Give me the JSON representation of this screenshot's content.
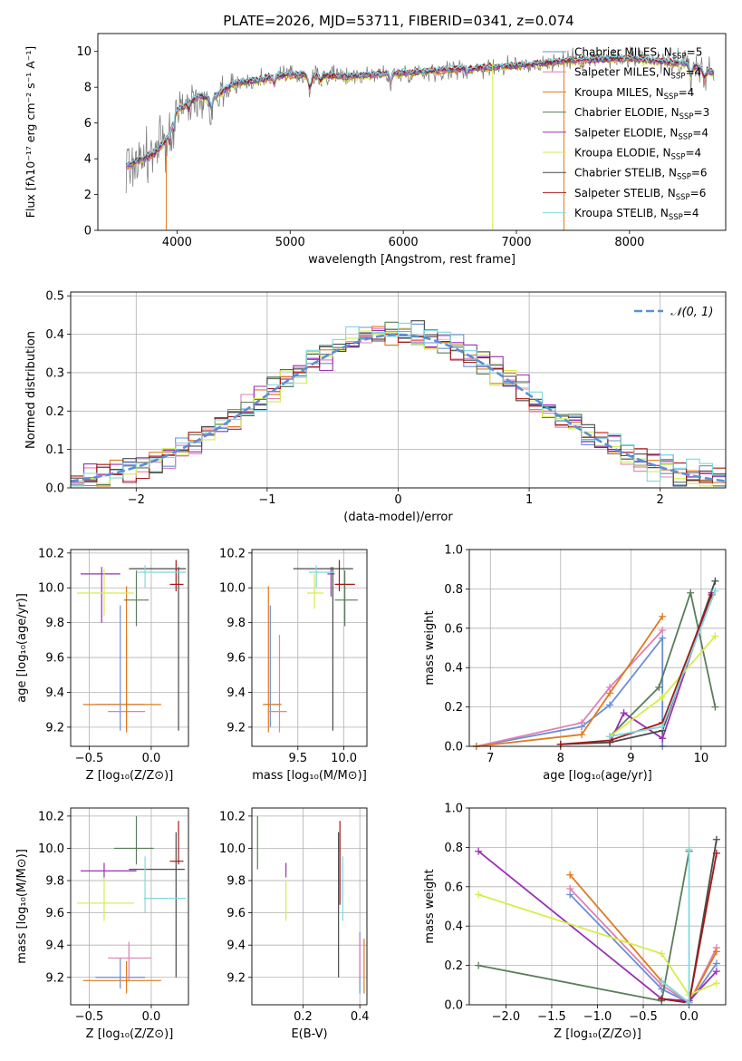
{
  "colors": {
    "chabrier_miles": "#6a8fd6",
    "salpeter_miles": "#e07fb3",
    "kroupa_miles": "#e07a1f",
    "chabrier_elodie": "#5a7d5a",
    "salpeter_elodie": "#9b2fb5",
    "kroupa_elodie": "#d4ee4a",
    "chabrier_stelib": "#4a4a4a",
    "salpeter_stelib": "#a51818",
    "kroupa_stelib": "#80d8de",
    "data": "#808080",
    "normal": "#5b8fd9",
    "grid": "#b0b0b0"
  },
  "chart_data": [
    {
      "id": "spectrum",
      "type": "line",
      "title": "PLATE=2026, MJD=53711, FIBERID=0341, z=0.074",
      "xlabel": "wavelength [Angstrom, rest frame]",
      "ylabel": "Flux [fλ10⁻¹⁷ erg cm⁻² s⁻¹ A⁻¹]",
      "xlim": [
        3300,
        8850
      ],
      "ylim": [
        0,
        11
      ],
      "xticks": [
        "4000",
        "5000",
        "6000",
        "7000",
        "8000"
      ],
      "yticks": [
        "0",
        "2",
        "4",
        "6",
        "8",
        "10"
      ],
      "legend_position": "right",
      "legend": [
        {
          "label": "Chabrier MILES, N",
          "sub": "SSP",
          "tail": "=5",
          "color_key": "chabrier_miles"
        },
        {
          "label": "Salpeter MILES, N",
          "sub": "SSP",
          "tail": "=4",
          "color_key": "salpeter_miles"
        },
        {
          "label": "Kroupa MILES, N",
          "sub": "SSP",
          "tail": "=4",
          "color_key": "kroupa_miles"
        },
        {
          "label": "Chabrier ELODIE, N",
          "sub": "SSP",
          "tail": "=3",
          "color_key": "chabrier_elodie"
        },
        {
          "label": "Salpeter ELODIE, N",
          "sub": "SSP",
          "tail": "=4",
          "color_key": "salpeter_elodie"
        },
        {
          "label": "Kroupa ELODIE, N",
          "sub": "SSP",
          "tail": "=4",
          "color_key": "kroupa_elodie"
        },
        {
          "label": "Chabrier STELIB, N",
          "sub": "SSP",
          "tail": "=6",
          "color_key": "chabrier_stelib"
        },
        {
          "label": "Salpeter STELIB, N",
          "sub": "SSP",
          "tail": "=6",
          "color_key": "salpeter_stelib"
        },
        {
          "label": "Kroupa STELIB, N",
          "sub": "SSP",
          "tail": "=4",
          "color_key": "kroupa_stelib"
        }
      ],
      "continuum": {
        "wavelength": [
          3550,
          3700,
          3800,
          3900,
          4000,
          4100,
          4200,
          4300,
          4500,
          4700,
          5000,
          5500,
          6000,
          6500,
          7000,
          7500,
          8000,
          8500,
          8750
        ],
        "flux": [
          3.6,
          4.0,
          4.3,
          5.0,
          6.7,
          7.1,
          7.5,
          7.3,
          8.2,
          8.4,
          8.7,
          8.6,
          8.8,
          9.0,
          9.2,
          9.5,
          9.6,
          9.3,
          8.8
        ]
      }
    },
    {
      "id": "residuals",
      "type": "histogram",
      "xlabel": "(data-model)/error",
      "ylabel": "Normed distribution",
      "xlim": [
        -2.5,
        2.5
      ],
      "ylim": [
        0,
        0.51
      ],
      "xticks": [
        "−2",
        "−1",
        "0",
        "1",
        "2"
      ],
      "yticks": [
        "0.0",
        "0.1",
        "0.2",
        "0.3",
        "0.4",
        "0.5"
      ],
      "legend_label": "𝒩(0, 1)",
      "legend_position": "top-right"
    },
    {
      "id": "age_vs_Z",
      "type": "errorbar",
      "xlabel": "Z [log₁₀(Z/Z⊙)]",
      "ylabel": "age  [log₁₀(age/yr)]",
      "xlim": [
        -0.65,
        0.3
      ],
      "ylim": [
        9.09,
        10.22
      ],
      "xticks": [
        "−0.5",
        "0.0"
      ],
      "yticks": [
        "9.2",
        "9.4",
        "9.6",
        "9.8",
        "10.0",
        "10.2"
      ],
      "points": [
        {
          "c": "chabrier_miles",
          "x": -0.25,
          "xlo": -0.45,
          "xhi": -0.05,
          "y": 9.33,
          "ylo": 9.18,
          "yhi": 9.9
        },
        {
          "c": "salpeter_miles",
          "x": -0.2,
          "xlo": -0.35,
          "xhi": -0.05,
          "y": 9.29,
          "ylo": 9.17,
          "yhi": 9.73
        },
        {
          "c": "kroupa_miles",
          "x": -0.2,
          "xlo": -0.55,
          "xhi": 0.08,
          "y": 9.33,
          "ylo": 9.17,
          "yhi": 10.01
        },
        {
          "c": "chabrier_elodie",
          "x": -0.12,
          "xlo": -0.22,
          "xhi": -0.02,
          "y": 9.93,
          "ylo": 9.78,
          "yhi": 10.1
        },
        {
          "c": "salpeter_elodie",
          "x": -0.4,
          "xlo": -0.57,
          "xhi": -0.25,
          "y": 10.08,
          "ylo": 9.8,
          "yhi": 10.12
        },
        {
          "c": "kroupa_elodie",
          "x": -0.38,
          "xlo": -0.6,
          "xhi": -0.14,
          "y": 9.97,
          "ylo": 9.84,
          "yhi": 10.11
        },
        {
          "c": "chabrier_stelib",
          "x": 0.22,
          "xlo": -0.18,
          "xhi": 0.28,
          "y": 10.11,
          "ylo": 9.18,
          "yhi": 10.12
        },
        {
          "c": "salpeter_stelib",
          "x": 0.2,
          "xlo": 0.15,
          "xhi": 0.26,
          "y": 10.02,
          "ylo": 9.98,
          "yhi": 10.16
        },
        {
          "c": "kroupa_stelib",
          "x": -0.05,
          "xlo": -0.12,
          "xhi": 0.28,
          "y": 10.09,
          "ylo": 10.0,
          "yhi": 10.13
        }
      ]
    },
    {
      "id": "age_vs_mass",
      "type": "errorbar",
      "xlabel": "mass [log₁₀(M/M⊙)]",
      "ylabel": "",
      "xlim": [
        9.0,
        10.25
      ],
      "ylim": [
        9.09,
        10.22
      ],
      "xticks": [
        "9.5",
        "10.0"
      ],
      "yticks": [
        "9.2",
        "9.4",
        "9.6",
        "9.8",
        "10.0",
        "10.2"
      ],
      "points": [
        {
          "c": "chabrier_miles",
          "x": 9.2,
          "xlo": 9.13,
          "xhi": 9.32,
          "y": 9.33,
          "ylo": 9.2,
          "yhi": 9.9
        },
        {
          "c": "salpeter_miles",
          "x": 9.3,
          "xlo": 9.18,
          "xhi": 9.38,
          "y": 9.29,
          "ylo": 9.17,
          "yhi": 9.73
        },
        {
          "c": "kroupa_miles",
          "x": 9.18,
          "xlo": 9.12,
          "xhi": 9.32,
          "y": 9.33,
          "ylo": 9.17,
          "yhi": 10.01
        },
        {
          "c": "chabrier_elodie",
          "x": 10.01,
          "xlo": 9.9,
          "xhi": 10.15,
          "y": 9.93,
          "ylo": 9.78,
          "yhi": 10.1
        },
        {
          "c": "salpeter_elodie",
          "x": 9.86,
          "xlo": 9.82,
          "xhi": 9.9,
          "y": 10.08,
          "ylo": 9.95,
          "yhi": 10.12
        },
        {
          "c": "kroupa_elodie",
          "x": 9.68,
          "xlo": 9.6,
          "xhi": 9.78,
          "y": 9.97,
          "ylo": 9.88,
          "yhi": 10.08
        },
        {
          "c": "chabrier_stelib",
          "x": 9.88,
          "xlo": 9.45,
          "xhi": 10.1,
          "y": 10.11,
          "ylo": 9.18,
          "yhi": 10.12
        },
        {
          "c": "salpeter_stelib",
          "x": 9.95,
          "xlo": 9.9,
          "xhi": 10.12,
          "y": 10.02,
          "ylo": 9.98,
          "yhi": 10.16
        },
        {
          "c": "kroupa_stelib",
          "x": 9.7,
          "xlo": 9.62,
          "xhi": 9.9,
          "y": 10.09,
          "ylo": 10.0,
          "yhi": 10.13
        }
      ]
    },
    {
      "id": "weight_vs_age",
      "type": "line",
      "xlabel": "age  [log₁₀(age/yr)]",
      "ylabel": "mass weight",
      "xlim": [
        6.7,
        10.35
      ],
      "ylim": [
        0,
        1
      ],
      "xticks": [
        "7",
        "8",
        "9",
        "10"
      ],
      "yticks": [
        "0.0",
        "0.2",
        "0.4",
        "0.6",
        "0.8",
        "1.0"
      ],
      "series": [
        {
          "c": "chabrier_miles",
          "x": [
            6.8,
            8.3,
            8.7,
            9.45,
            9.45
          ],
          "y": [
            0.0,
            0.1,
            0.21,
            0.55,
            0.0
          ]
        },
        {
          "c": "salpeter_miles",
          "x": [
            6.8,
            8.3,
            8.7,
            9.45
          ],
          "y": [
            0.0,
            0.12,
            0.3,
            0.59
          ]
        },
        {
          "c": "kroupa_miles",
          "x": [
            6.8,
            8.3,
            8.7,
            9.45
          ],
          "y": [
            0.0,
            0.06,
            0.27,
            0.66
          ]
        },
        {
          "c": "chabrier_elodie",
          "x": [
            8.7,
            9.4,
            9.85,
            10.2
          ],
          "y": [
            0.05,
            0.3,
            0.78,
            0.2
          ]
        },
        {
          "c": "salpeter_elodie",
          "x": [
            8.7,
            8.9,
            9.45,
            10.15
          ],
          "y": [
            0.02,
            0.17,
            0.04,
            0.78
          ]
        },
        {
          "c": "kroupa_elodie",
          "x": [
            8.7,
            9.45,
            10.2
          ],
          "y": [
            0.05,
            0.25,
            0.56
          ]
        },
        {
          "c": "chabrier_stelib",
          "x": [
            8.0,
            8.7,
            9.45,
            10.2
          ],
          "y": [
            0.01,
            0.02,
            0.08,
            0.84
          ]
        },
        {
          "c": "salpeter_stelib",
          "x": [
            8.0,
            8.7,
            9.45,
            10.15
          ],
          "y": [
            0.01,
            0.03,
            0.12,
            0.77
          ]
        },
        {
          "c": "kroupa_stelib",
          "x": [
            8.7,
            9.45,
            10.2
          ],
          "y": [
            0.05,
            0.1,
            0.79
          ]
        }
      ]
    },
    {
      "id": "mass_vs_Z",
      "type": "errorbar",
      "xlabel": "Z [log₁₀(Z/Z⊙)]",
      "ylabel": "mass [log₁₀(M/M⊙)]",
      "xlim": [
        -0.65,
        0.3
      ],
      "ylim": [
        9.03,
        10.25
      ],
      "xticks": [
        "−0.5",
        "0.0"
      ],
      "yticks": [
        "9.2",
        "9.4",
        "9.6",
        "9.8",
        "10.0",
        "10.2"
      ],
      "points": [
        {
          "c": "chabrier_miles",
          "x": -0.25,
          "xlo": -0.45,
          "xhi": -0.05,
          "y": 9.2,
          "ylo": 9.13,
          "yhi": 9.32
        },
        {
          "c": "salpeter_miles",
          "x": -0.18,
          "xlo": -0.35,
          "xhi": -0.0,
          "y": 9.32,
          "ylo": 9.18,
          "yhi": 9.42
        },
        {
          "c": "kroupa_miles",
          "x": -0.2,
          "xlo": -0.55,
          "xhi": 0.08,
          "y": 9.18,
          "ylo": 9.1,
          "yhi": 9.3
        },
        {
          "c": "chabrier_elodie",
          "x": -0.12,
          "xlo": -0.3,
          "xhi": 0.02,
          "y": 10.0,
          "ylo": 9.9,
          "yhi": 10.2
        },
        {
          "c": "salpeter_elodie",
          "x": -0.38,
          "xlo": -0.57,
          "xhi": -0.12,
          "y": 9.86,
          "ylo": 9.82,
          "yhi": 9.91
        },
        {
          "c": "kroupa_elodie",
          "x": -0.38,
          "xlo": -0.6,
          "xhi": -0.14,
          "y": 9.66,
          "ylo": 9.55,
          "yhi": 9.82
        },
        {
          "c": "chabrier_stelib",
          "x": 0.2,
          "xlo": -0.18,
          "xhi": 0.27,
          "y": 9.87,
          "ylo": 9.2,
          "yhi": 10.1
        },
        {
          "c": "salpeter_stelib",
          "x": 0.22,
          "xlo": 0.15,
          "xhi": 0.26,
          "y": 9.92,
          "ylo": 9.9,
          "yhi": 10.17
        },
        {
          "c": "kroupa_stelib",
          "x": -0.05,
          "xlo": -0.06,
          "xhi": 0.28,
          "y": 9.69,
          "ylo": 9.6,
          "yhi": 9.95
        }
      ]
    },
    {
      "id": "mass_vs_ebv",
      "type": "errorbar",
      "xlabel": "E(B-V)",
      "ylabel": "",
      "xlim": [
        0.02,
        0.425
      ],
      "ylim": [
        9.03,
        10.25
      ],
      "xticks": [
        "0.2",
        "0.4"
      ],
      "yticks": [
        "9.2",
        "9.4",
        "9.6",
        "9.8",
        "10.0",
        "10.2"
      ],
      "points": [
        {
          "c": "chabrier_miles",
          "x": 0.4,
          "y": 9.2,
          "ylo": 9.1,
          "yhi": 9.48
        },
        {
          "c": "salpeter_miles",
          "x": 0.4,
          "y": 9.32,
          "ylo": 9.2,
          "yhi": 9.45
        },
        {
          "c": "kroupa_miles",
          "x": 0.415,
          "y": 9.18,
          "ylo": 9.1,
          "yhi": 9.44
        },
        {
          "c": "chabrier_elodie",
          "x": 0.04,
          "y": 10.0,
          "ylo": 9.87,
          "yhi": 10.2
        },
        {
          "c": "salpeter_elodie",
          "x": 0.14,
          "y": 9.86,
          "ylo": 9.82,
          "yhi": 9.91
        },
        {
          "c": "kroupa_elodie",
          "x": 0.14,
          "y": 9.66,
          "ylo": 9.55,
          "yhi": 9.8
        },
        {
          "c": "chabrier_stelib",
          "x": 0.325,
          "y": 9.87,
          "ylo": 9.2,
          "yhi": 10.1
        },
        {
          "c": "salpeter_stelib",
          "x": 0.33,
          "y": 9.92,
          "ylo": 9.65,
          "yhi": 10.17
        },
        {
          "c": "kroupa_stelib",
          "x": 0.34,
          "y": 9.69,
          "ylo": 9.55,
          "yhi": 9.95
        }
      ]
    },
    {
      "id": "weight_vs_Z",
      "type": "line",
      "xlabel": "Z [log₁₀(Z/Z⊙)]",
      "ylabel": "mass weight",
      "xlim": [
        -2.4,
        0.4
      ],
      "ylim": [
        0,
        1
      ],
      "xticks": [
        "−2.0",
        "−1.5",
        "−1.0",
        "−0.5",
        "0.0"
      ],
      "yticks": [
        "0.0",
        "0.2",
        "0.4",
        "0.6",
        "0.8",
        "1.0"
      ],
      "series": [
        {
          "c": "chabrier_miles",
          "x": [
            -1.3,
            -0.3,
            0.0,
            0.3
          ],
          "y": [
            0.56,
            0.08,
            0.01,
            0.21
          ]
        },
        {
          "c": "salpeter_miles",
          "x": [
            -1.3,
            -0.3,
            0.0,
            0.3
          ],
          "y": [
            0.59,
            0.1,
            0.01,
            0.29
          ]
        },
        {
          "c": "kroupa_miles",
          "x": [
            -1.3,
            -0.3,
            0.0,
            0.3
          ],
          "y": [
            0.66,
            0.12,
            0.01,
            0.27
          ]
        },
        {
          "c": "chabrier_elodie",
          "x": [
            -2.3,
            -0.3,
            0.0
          ],
          "y": [
            0.2,
            0.02,
            0.78
          ]
        },
        {
          "c": "salpeter_elodie",
          "x": [
            -2.3,
            -0.3,
            0.0,
            0.3
          ],
          "y": [
            0.78,
            0.03,
            0.02,
            0.17
          ]
        },
        {
          "c": "kroupa_elodie",
          "x": [
            -2.3,
            -0.3,
            0.0,
            0.3
          ],
          "y": [
            0.56,
            0.26,
            0.05,
            0.11
          ]
        },
        {
          "c": "chabrier_stelib",
          "x": [
            -0.3,
            0.0,
            0.3
          ],
          "y": [
            0.03,
            0.01,
            0.84
          ]
        },
        {
          "c": "salpeter_stelib",
          "x": [
            -0.3,
            0.0,
            0.3
          ],
          "y": [
            0.03,
            0.01,
            0.77
          ]
        },
        {
          "c": "kroupa_stelib",
          "x": [
            -0.3,
            0.0,
            0.0
          ],
          "y": [
            0.12,
            0.01,
            0.79
          ]
        }
      ]
    }
  ]
}
